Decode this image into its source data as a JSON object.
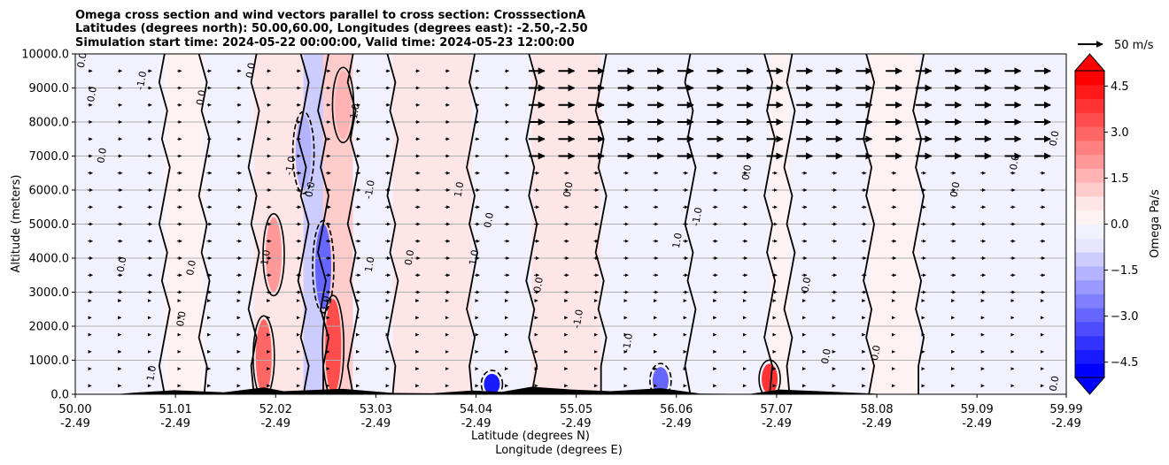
{
  "chart_data": {
    "type": "heatmap",
    "title_lines": [
      "Omega cross section and wind vectors parallel to cross section: CrosssectionA",
      "Latitudes (degrees north): 50.00,60.00, Longitudes (degrees east): -2.50,-2.50",
      "Simulation start time: 2024-05-22 00:00:00, Valid time: 2024-05-23 12:00:00"
    ],
    "ylabel": "Altitude (meters)",
    "xlabel_lat": "Latitude (degrees N)",
    "xlabel_lon": "Longitude (degrees E)",
    "ylim": [
      0,
      10000
    ],
    "xlim": [
      50.0,
      59.99
    ],
    "y_ticks": [
      {
        "value": 0,
        "label": "0.0"
      },
      {
        "value": 1000,
        "label": "1000.0"
      },
      {
        "value": 2000,
        "label": "2000.0"
      },
      {
        "value": 3000,
        "label": "3000.0"
      },
      {
        "value": 4000,
        "label": "4000.0"
      },
      {
        "value": 5000,
        "label": "5000.0"
      },
      {
        "value": 6000,
        "label": "6000.0"
      },
      {
        "value": 7000,
        "label": "7000.0"
      },
      {
        "value": 8000,
        "label": "8000.0"
      },
      {
        "value": 9000,
        "label": "9000.0"
      },
      {
        "value": 10000,
        "label": "10000.0"
      }
    ],
    "x_ticks": [
      {
        "lat": 50.0,
        "lat_label": "50.00",
        "lon_label": "-2.49"
      },
      {
        "lat": 51.01,
        "lat_label": "51.01",
        "lon_label": "-2.49"
      },
      {
        "lat": 52.02,
        "lat_label": "52.02",
        "lon_label": "-2.49"
      },
      {
        "lat": 53.03,
        "lat_label": "53.03",
        "lon_label": "-2.49"
      },
      {
        "lat": 54.04,
        "lat_label": "54.04",
        "lon_label": "-2.49"
      },
      {
        "lat": 55.05,
        "lat_label": "55.05",
        "lon_label": "-2.49"
      },
      {
        "lat": 56.06,
        "lat_label": "56.06",
        "lon_label": "-2.49"
      },
      {
        "lat": 57.07,
        "lat_label": "57.07",
        "lon_label": "-2.49"
      },
      {
        "lat": 58.08,
        "lat_label": "58.08",
        "lon_label": "-2.49"
      },
      {
        "lat": 59.09,
        "lat_label": "59.09",
        "lon_label": "-2.49"
      },
      {
        "lat": 59.99,
        "lat_label": "59.99",
        "lon_label": "-2.49"
      }
    ],
    "colorbar": {
      "label": "Omega Pa/s",
      "range": [
        -5.0,
        5.0
      ],
      "ticks": [
        {
          "value": 4.5,
          "label": "4.5"
        },
        {
          "value": 3.0,
          "label": "3.0"
        },
        {
          "value": 1.5,
          "label": "1.5"
        },
        {
          "value": 0.0,
          "label": "0.0"
        },
        {
          "value": -1.5,
          "label": "−1.5"
        },
        {
          "value": -3.0,
          "label": "−3.0"
        },
        {
          "value": -4.5,
          "label": "−4.5"
        }
      ],
      "colors": [
        "#0000ff",
        "#1a1aff",
        "#3333ff",
        "#4d4dff",
        "#6666ff",
        "#8080ff",
        "#9999ff",
        "#b3b3ff",
        "#ccccff",
        "#e6e6ff",
        "#f2f2ff",
        "#fff2f2",
        "#ffe6e6",
        "#ffcccc",
        "#ffb3b3",
        "#ff9999",
        "#ff8080",
        "#ff6666",
        "#ff4d4d",
        "#ff3333",
        "#ff1a1a",
        "#ff0000"
      ]
    },
    "quiver_key": {
      "label": "50 m/s",
      "speed": 50
    },
    "shading": [
      {
        "lat_from": 50.0,
        "lat_to": 50.9,
        "omega": -0.2
      },
      {
        "lat_from": 50.9,
        "lat_to": 51.3,
        "omega": 0.3
      },
      {
        "lat_from": 51.3,
        "lat_to": 51.8,
        "omega": -0.2
      },
      {
        "lat_from": 51.8,
        "lat_to": 52.3,
        "omega": 0.6
      },
      {
        "lat_from": 52.3,
        "lat_to": 52.5,
        "omega": -1.2
      },
      {
        "lat_from": 52.5,
        "lat_to": 52.8,
        "omega": 1.2
      },
      {
        "lat_from": 52.8,
        "lat_to": 53.2,
        "omega": -0.4
      },
      {
        "lat_from": 53.2,
        "lat_to": 54.0,
        "omega": 0.5
      },
      {
        "lat_from": 54.0,
        "lat_to": 54.6,
        "omega": -0.3
      },
      {
        "lat_from": 54.6,
        "lat_to": 55.3,
        "omega": 0.6
      },
      {
        "lat_from": 55.3,
        "lat_to": 56.2,
        "omega": -0.4
      },
      {
        "lat_from": 56.2,
        "lat_to": 57.0,
        "omega": -0.2
      },
      {
        "lat_from": 57.0,
        "lat_to": 57.2,
        "omega": 0.4
      },
      {
        "lat_from": 57.2,
        "lat_to": 58.0,
        "omega": -0.3
      },
      {
        "lat_from": 58.0,
        "lat_to": 58.5,
        "omega": 0.3
      },
      {
        "lat_from": 58.5,
        "lat_to": 59.99,
        "omega": -0.2
      }
    ],
    "strong_features": [
      {
        "lat": 51.9,
        "alt_from": 0,
        "alt_to": 2200,
        "omega": 2.8
      },
      {
        "lat": 52.0,
        "alt_from": 3000,
        "alt_to": 5200,
        "omega": 2.2
      },
      {
        "lat": 52.3,
        "alt_from": 6000,
        "alt_to": 8200,
        "omega": -1.8
      },
      {
        "lat": 52.5,
        "alt_from": 2500,
        "alt_to": 5000,
        "omega": -2.8
      },
      {
        "lat": 52.6,
        "alt_from": 0,
        "alt_to": 2800,
        "omega": 3.2
      },
      {
        "lat": 52.7,
        "alt_from": 7500,
        "alt_to": 9500,
        "omega": 1.8
      },
      {
        "lat": 54.2,
        "alt_from": 0,
        "alt_to": 600,
        "omega": -4.2
      },
      {
        "lat": 55.9,
        "alt_from": 0,
        "alt_to": 800,
        "omega": -3.0
      },
      {
        "lat": 57.0,
        "alt_from": 0,
        "alt_to": 900,
        "omega": 4.0
      }
    ],
    "contour_labels": [
      {
        "lat": 50.1,
        "alt": 9800,
        "text": "0.0"
      },
      {
        "lat": 50.2,
        "alt": 8800,
        "text": "0.0"
      },
      {
        "lat": 50.3,
        "alt": 7000,
        "text": "0.0"
      },
      {
        "lat": 50.5,
        "alt": 3800,
        "text": "0.0"
      },
      {
        "lat": 50.7,
        "alt": 9200,
        "text": "-1.0"
      },
      {
        "lat": 50.8,
        "alt": 600,
        "text": "1.0"
      },
      {
        "lat": 51.1,
        "alt": 2200,
        "text": "0.0"
      },
      {
        "lat": 51.2,
        "alt": 3700,
        "text": "0.0"
      },
      {
        "lat": 51.3,
        "alt": 8700,
        "text": "0.0"
      },
      {
        "lat": 51.8,
        "alt": 9500,
        "text": "0.0"
      },
      {
        "lat": 51.95,
        "alt": 4000,
        "text": "1.0"
      },
      {
        "lat": 52.2,
        "alt": 6700,
        "text": "-1.0"
      },
      {
        "lat": 52.4,
        "alt": 6000,
        "text": "0.0"
      },
      {
        "lat": 52.55,
        "alt": 2600,
        "text": "-1.0"
      },
      {
        "lat": 52.85,
        "alt": 8300,
        "text": "1.0"
      },
      {
        "lat": 53.0,
        "alt": 6000,
        "text": "-1.0"
      },
      {
        "lat": 53.0,
        "alt": 3800,
        "text": "1.0"
      },
      {
        "lat": 53.4,
        "alt": 4000,
        "text": "0.0"
      },
      {
        "lat": 53.9,
        "alt": 6000,
        "text": "1.0"
      },
      {
        "lat": 54.05,
        "alt": 4000,
        "text": "1.0"
      },
      {
        "lat": 54.2,
        "alt": 5100,
        "text": "0.0"
      },
      {
        "lat": 54.7,
        "alt": 3200,
        "text": "0.0"
      },
      {
        "lat": 55.0,
        "alt": 6000,
        "text": "0.0"
      },
      {
        "lat": 55.1,
        "alt": 2200,
        "text": "-1.0"
      },
      {
        "lat": 55.6,
        "alt": 1500,
        "text": "-1.0"
      },
      {
        "lat": 56.1,
        "alt": 4500,
        "text": "1.0"
      },
      {
        "lat": 56.3,
        "alt": 5200,
        "text": "-1.0"
      },
      {
        "lat": 56.8,
        "alt": 6500,
        "text": "0.0"
      },
      {
        "lat": 57.4,
        "alt": 3200,
        "text": "0.0"
      },
      {
        "lat": 57.6,
        "alt": 1100,
        "text": "0.0"
      },
      {
        "lat": 58.1,
        "alt": 1200,
        "text": "0.0"
      },
      {
        "lat": 58.9,
        "alt": 6000,
        "text": "0.0"
      },
      {
        "lat": 59.5,
        "alt": 6800,
        "text": "0.0"
      },
      {
        "lat": 59.9,
        "alt": 7500,
        "text": "0.0"
      },
      {
        "lat": 59.9,
        "alt": 300,
        "text": "0.0"
      }
    ],
    "wind_vectors": [
      {
        "alt_from": 0,
        "alt_to": 3000,
        "lat_from": 50.0,
        "lat_to": 59.99,
        "speed": 3
      },
      {
        "alt_from": 3000,
        "alt_to": 7000,
        "lat_from": 50.0,
        "lat_to": 59.99,
        "speed": 6
      },
      {
        "alt_from": 7000,
        "alt_to": 10000,
        "lat_from": 50.0,
        "lat_to": 54.5,
        "speed": 5
      },
      {
        "alt_from": 7000,
        "alt_to": 10000,
        "lat_from": 54.5,
        "lat_to": 59.99,
        "speed": 20
      }
    ]
  }
}
